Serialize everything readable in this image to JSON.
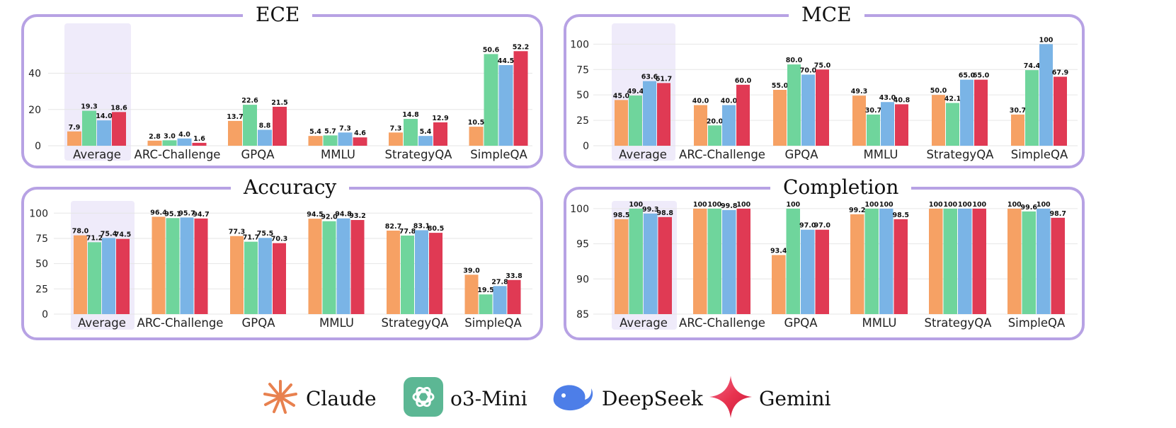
{
  "colors": {
    "claude": "#f6a164",
    "o3mini": "#6fd59c",
    "deepseek": "#7ab4e6",
    "gemini": "#e03a54",
    "panel_border": "#b7a2e4",
    "highlight": "#efebfa"
  },
  "legend": [
    {
      "name": "Claude",
      "icon": "claude-icon"
    },
    {
      "name": "o3-Mini",
      "icon": "openai-icon"
    },
    {
      "name": "DeepSeek",
      "icon": "deepseek-icon"
    },
    {
      "name": "Gemini",
      "icon": "gemini-icon"
    }
  ],
  "chart_data": [
    {
      "type": "bar",
      "title": "ECE",
      "categories": [
        "Average",
        "ARC-Challenge",
        "GPQA",
        "MMLU",
        "StrategyQA",
        "SimpleQA"
      ],
      "ylim": [
        0,
        57
      ],
      "yticks": [
        0,
        20,
        40
      ],
      "highlight_category": "Average",
      "grid": true,
      "series": [
        {
          "name": "Claude",
          "values": [
            7.9,
            2.8,
            13.7,
            5.4,
            7.3,
            10.5
          ],
          "labels": [
            "7.9",
            "2.8",
            "13.7",
            "5.4",
            "7.3",
            "10.5"
          ]
        },
        {
          "name": "o3-Mini",
          "values": [
            19.3,
            3.0,
            22.6,
            5.7,
            14.8,
            50.6
          ],
          "labels": [
            "19.3",
            "3.0",
            "22.6",
            "5.7",
            "14.8",
            "50.6"
          ]
        },
        {
          "name": "DeepSeek",
          "values": [
            14.0,
            4.0,
            8.8,
            7.3,
            5.4,
            44.5
          ],
          "labels": [
            "14.0",
            "4.0",
            "8.8",
            "7.3",
            "5.4",
            "44.5"
          ]
        },
        {
          "name": "Gemini",
          "values": [
            18.6,
            1.6,
            21.5,
            4.6,
            12.9,
            52.2
          ],
          "labels": [
            "18.6",
            "1.6",
            "21.5",
            "4.6",
            "12.9",
            "52.2"
          ]
        }
      ]
    },
    {
      "type": "bar",
      "title": "MCE",
      "categories": [
        "Average",
        "ARC-Challenge",
        "GPQA",
        "MMLU",
        "StrategyQA",
        "SimpleQA"
      ],
      "ylim": [
        0,
        110
      ],
      "yticks": [
        0,
        25,
        50,
        75,
        100
      ],
      "highlight_category": "Average",
      "grid": true,
      "series": [
        {
          "name": "Claude",
          "values": [
            45.0,
            40.0,
            55.0,
            49.3,
            50.0,
            30.7
          ],
          "labels": [
            "45.0",
            "40.0",
            "55.0",
            "49.3",
            "50.0",
            "30.7"
          ]
        },
        {
          "name": "o3-Mini",
          "values": [
            49.4,
            20.0,
            80.0,
            30.7,
            42.1,
            74.4
          ],
          "labels": [
            "49.4",
            "20.0",
            "80.0",
            "30.7",
            "42.1",
            "74.4"
          ]
        },
        {
          "name": "DeepSeek",
          "values": [
            63.6,
            40.0,
            70.0,
            43.0,
            65.0,
            100
          ],
          "labels": [
            "63.6",
            "40.0",
            "70.0",
            "43.0",
            "65.0",
            "100"
          ]
        },
        {
          "name": "Gemini",
          "values": [
            61.7,
            60.0,
            75.0,
            40.8,
            65.0,
            67.9
          ],
          "labels": [
            "61.7",
            "60.0",
            "75.0",
            "40.8",
            "65.0",
            "67.9"
          ]
        }
      ]
    },
    {
      "type": "bar",
      "title": "Accuracy",
      "categories": [
        "Average",
        "ARC-Challenge",
        "GPQA",
        "MMLU",
        "StrategyQA",
        "SimpleQA"
      ],
      "ylim": [
        0,
        110
      ],
      "yticks": [
        0,
        25,
        50,
        75,
        100
      ],
      "highlight_category": "Average",
      "grid": true,
      "series": [
        {
          "name": "Claude",
          "values": [
            78.0,
            96.4,
            77.3,
            94.5,
            82.7,
            39.0
          ],
          "labels": [
            "78.0",
            "96.4",
            "77.3",
            "94.5",
            "82.7",
            "39.0"
          ]
        },
        {
          "name": "o3-Mini",
          "values": [
            71.2,
            95.1,
            71.7,
            92.0,
            77.8,
            19.5
          ],
          "labels": [
            "71.2",
            "95.1",
            "71.7",
            "92.0",
            "77.8",
            "19.5"
          ]
        },
        {
          "name": "DeepSeek",
          "values": [
            75.4,
            95.7,
            75.5,
            94.8,
            83.1,
            27.8
          ],
          "labels": [
            "75.4",
            "95.7",
            "75.5",
            "94.8",
            "83.1",
            "27.8"
          ]
        },
        {
          "name": "Gemini",
          "values": [
            74.5,
            94.7,
            70.3,
            93.2,
            80.5,
            33.8
          ],
          "labels": [
            "74.5",
            "94.7",
            "70.3",
            "93.2",
            "80.5",
            "33.8"
          ]
        }
      ]
    },
    {
      "type": "bar",
      "title": "Completion",
      "categories": [
        "Average",
        "ARC-Challenge",
        "GPQA",
        "MMLU",
        "StrategyQA",
        "SimpleQA"
      ],
      "ylim": [
        85,
        101.5
      ],
      "yticks": [
        85,
        90,
        95,
        100
      ],
      "highlight_category": "Average",
      "grid": true,
      "series": [
        {
          "name": "Claude",
          "values": [
            98.5,
            100,
            93.4,
            99.2,
            100,
            100
          ],
          "labels": [
            "98.5",
            "100",
            "93.4",
            "99.2",
            "100",
            "100"
          ]
        },
        {
          "name": "o3-Mini",
          "values": [
            100,
            100,
            100,
            100,
            100,
            99.6
          ],
          "labels": [
            "100",
            "100",
            "100",
            "100",
            "100",
            "99.6"
          ]
        },
        {
          "name": "DeepSeek",
          "values": [
            99.3,
            99.8,
            97.0,
            100,
            100,
            100
          ],
          "labels": [
            "99.3",
            "99.8",
            "97.0",
            "100",
            "100",
            "100"
          ]
        },
        {
          "name": "Gemini",
          "values": [
            98.8,
            100,
            97.0,
            98.5,
            100,
            98.7
          ],
          "labels": [
            "98.8",
            "100",
            "97.0",
            "98.5",
            "100",
            "98.7"
          ]
        }
      ]
    }
  ]
}
